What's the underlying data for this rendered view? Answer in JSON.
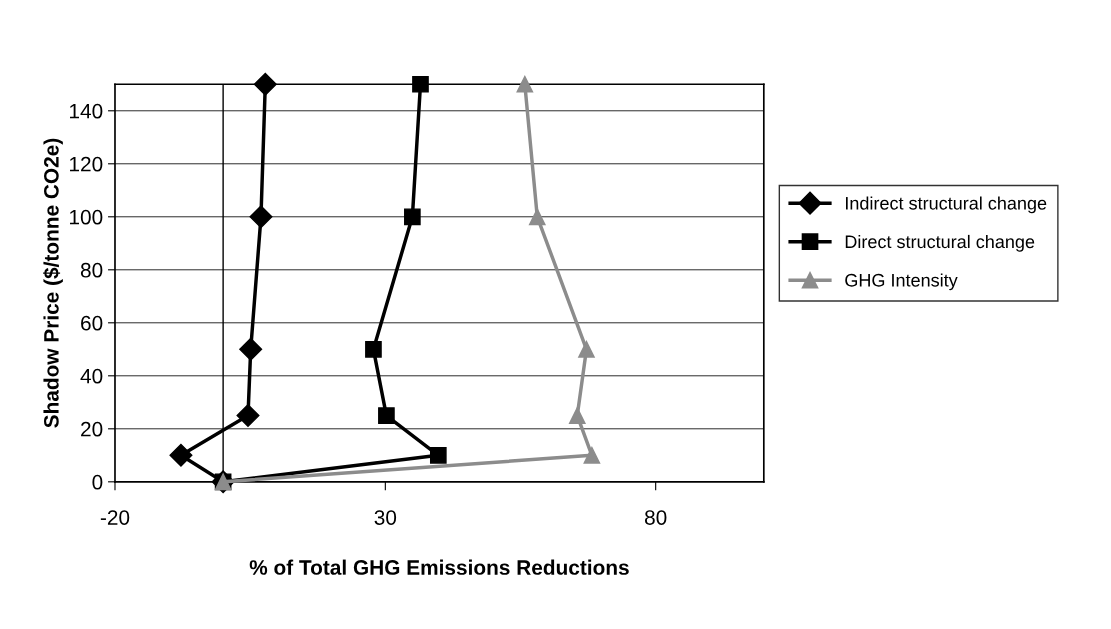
{
  "chart_data": {
    "type": "line",
    "xlabel": "% of Total GHG Emissions Reductions",
    "ylabel": "Shadow Price ($/tonne CO2e)",
    "xlim": [
      -20,
      100
    ],
    "xticks": [
      -20,
      30,
      80
    ],
    "ylim": [
      0,
      150
    ],
    "yticks": [
      0,
      20,
      40,
      60,
      80,
      100,
      120,
      140
    ],
    "grid": "y",
    "legend": "right",
    "ref_lines": [
      {
        "axis": "x",
        "value": 0,
        "color": "#000000"
      }
    ],
    "series": [
      {
        "name": "Indirect structural change",
        "color": "#000000",
        "marker": "diamond",
        "x": [
          0,
          -7.8,
          4.6,
          5.1,
          7.0,
          7.8
        ],
        "values": [
          0,
          10,
          25,
          50,
          100,
          150
        ]
      },
      {
        "name": "Direct structural change",
        "color": "#000000",
        "marker": "square",
        "x": [
          0,
          39.8,
          30.2,
          27.8,
          35.0,
          36.5
        ],
        "values": [
          0,
          10,
          25,
          50,
          100,
          150
        ]
      },
      {
        "name": "GHG Intensity",
        "color": "#8c8c8c",
        "marker": "triangle",
        "x": [
          0,
          68.2,
          65.5,
          67.2,
          58.1,
          55.8
        ],
        "values": [
          0,
          10,
          25,
          50,
          100,
          150
        ]
      }
    ]
  }
}
